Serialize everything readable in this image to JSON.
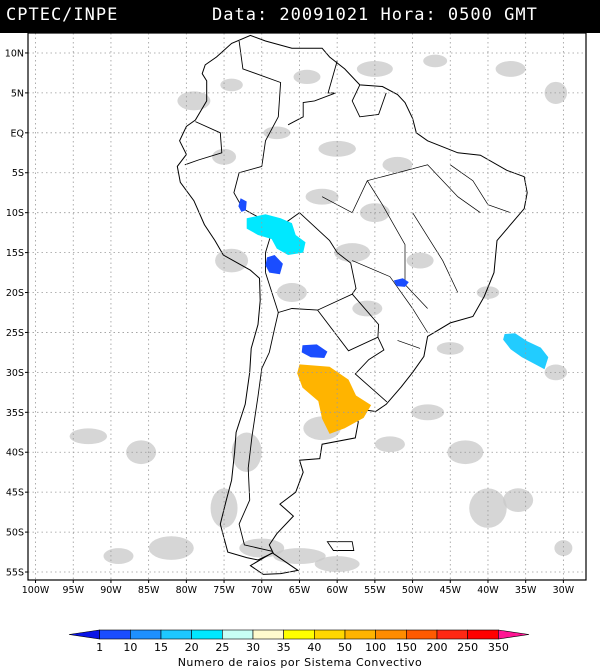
{
  "header": {
    "source": "CPTEC/INPE",
    "datetime": "Data: 20091021 Hora: 0500 GMT"
  },
  "map": {
    "lat_labels": [
      "10N",
      "5N",
      "EQ",
      "5S",
      "10S",
      "15S",
      "20S",
      "25S",
      "30S",
      "35S",
      "40S",
      "45S",
      "50S",
      "55S"
    ],
    "lat_values": [
      10,
      5,
      0,
      -5,
      -10,
      -15,
      -20,
      -25,
      -30,
      -35,
      -40,
      -45,
      -50,
      -55
    ],
    "lon_labels": [
      "100W",
      "95W",
      "90W",
      "85W",
      "80W",
      "75W",
      "70W",
      "65W",
      "60W",
      "55W",
      "50W",
      "45W",
      "40W",
      "35W",
      "30W"
    ],
    "lon_values": [
      -100,
      -95,
      -90,
      -85,
      -80,
      -75,
      -70,
      -65,
      -60,
      -55,
      -50,
      -45,
      -40,
      -35,
      -30
    ],
    "lon_range": [
      -101,
      -27
    ],
    "lat_range": [
      -56,
      12.5
    ],
    "grid": true,
    "colors": {
      "cloud": "#c8c8c8",
      "coast": "#000000",
      "grid": "#9a9a9a"
    },
    "convective_systems": [
      {
        "name": "rondonia-bolivia",
        "lon": -67.5,
        "lat": -12.5,
        "color": "#00e8ff"
      },
      {
        "name": "peru-north",
        "lon": -72.5,
        "lat": -9.0,
        "color": "#1a4dff"
      },
      {
        "name": "bolivia-south",
        "lon": -68.5,
        "lat": -16.5,
        "color": "#1a4dff"
      },
      {
        "name": "minas-gerais",
        "lon": -51.5,
        "lat": -18.8,
        "color": "#1a4dff"
      },
      {
        "name": "paraguay-chaco",
        "lon": -63.0,
        "lat": -27.5,
        "color": "#1a4dff"
      },
      {
        "name": "argentina-uruguay",
        "lon": -60.0,
        "lat": -32.5,
        "color": "#ffb400"
      },
      {
        "name": "atlantic-southeast",
        "lon": -34.0,
        "lat": -27.5,
        "color": "#22ccff"
      }
    ]
  },
  "colorbar": {
    "title": "Numero de raios por Sistema Convectivo",
    "labels": [
      "1",
      "10",
      "15",
      "20",
      "25",
      "30",
      "35",
      "40",
      "50",
      "100",
      "150",
      "200",
      "250",
      "350"
    ],
    "colors": [
      "#0a14e6",
      "#1a4dff",
      "#1e90ff",
      "#1ec8ff",
      "#00e8ff",
      "#c8fff5",
      "#fffacd",
      "#ffff00",
      "#ffd700",
      "#ffb400",
      "#ff8c00",
      "#ff5a00",
      "#ff2814",
      "#ff0000",
      "#ff1493"
    ]
  }
}
